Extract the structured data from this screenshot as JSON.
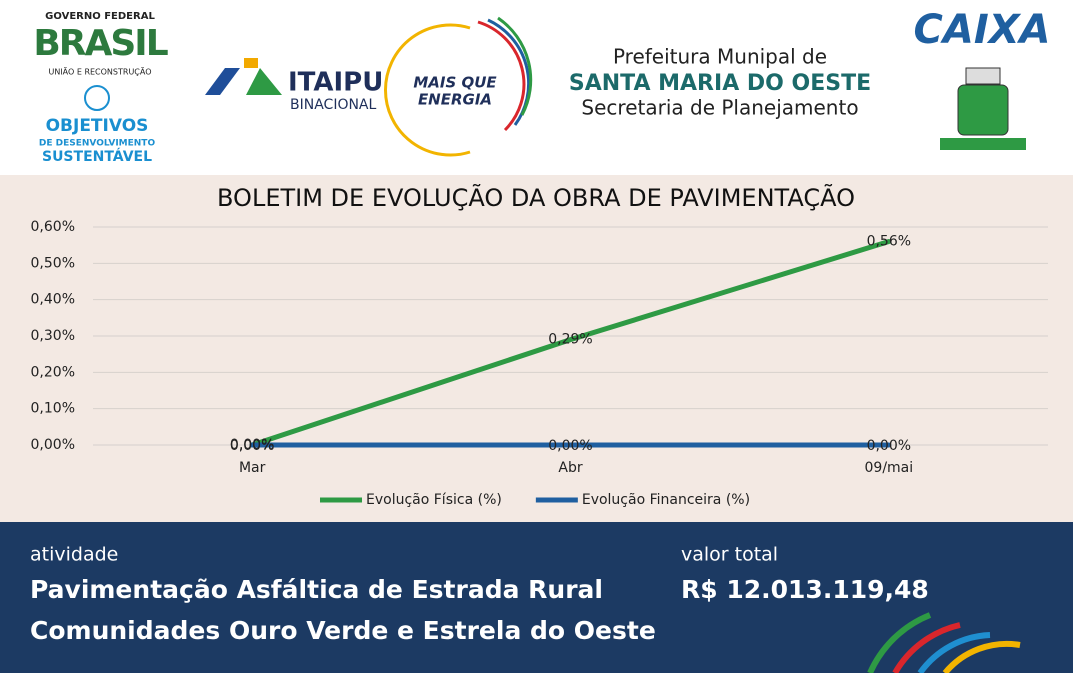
{
  "header": {
    "gov_top": "GOVERNO FEDERAL",
    "gov_brand": "BRASIL",
    "gov_sub": "UNIÃO E RECONSTRUÇÃO",
    "ods_1": "OBJETIVOS",
    "ods_2": "DE DESENVOLVIMENTO",
    "ods_3": "SUSTENTÁVEL",
    "itaipu": "ITAIPU",
    "itaipu_sub": "BINACIONAL",
    "slogan_1": "MAIS QUE",
    "slogan_2": "ENERGIA",
    "city_1": "Prefeitura Munipal de",
    "city_2": "SANTA MARIA DO OESTE",
    "city_3": "Secretaria de Planejamento",
    "caixa": "CAIXA"
  },
  "chart_data": {
    "type": "line",
    "title": "BOLETIM DE EVOLUÇÃO DA OBRA DE PAVIMENTAÇÃO",
    "categories": [
      "Mar",
      "Abr",
      "09/mai"
    ],
    "series": [
      {
        "name": "Evolução Física (%)",
        "color": "#2e9a44",
        "values": [
          0,
          0.29,
          0.56
        ],
        "value_labels": [
          "0,00%",
          "0,29%",
          "0,56%"
        ]
      },
      {
        "name": "Evolução Financeira (%)",
        "color": "#1f5fa0",
        "values": [
          0,
          0,
          0
        ],
        "value_labels": [
          "0,00%",
          "0,00%",
          "0,00%"
        ]
      }
    ],
    "ylim": [
      0,
      0.6
    ],
    "yticks": [
      {
        "value": 0,
        "label": "0,00%"
      },
      {
        "value": 0.1,
        "label": "0,10%"
      },
      {
        "value": 0.2,
        "label": "0,20%"
      },
      {
        "value": 0.3,
        "label": "0,30%"
      },
      {
        "value": 0.4,
        "label": "0,40%"
      },
      {
        "value": 0.5,
        "label": "0,50%"
      },
      {
        "value": 0.6,
        "label": "0,60%"
      }
    ],
    "grid": true,
    "legend": "bottom"
  },
  "footer": {
    "activity_label": "atividade",
    "activity_1": "Pavimentação Asfáltica de Estrada Rural",
    "activity_2": "Comunidades Ouro Verde e Estrela do Oeste",
    "value_label": "valor total",
    "value": "R$ 12.013.119,48"
  }
}
